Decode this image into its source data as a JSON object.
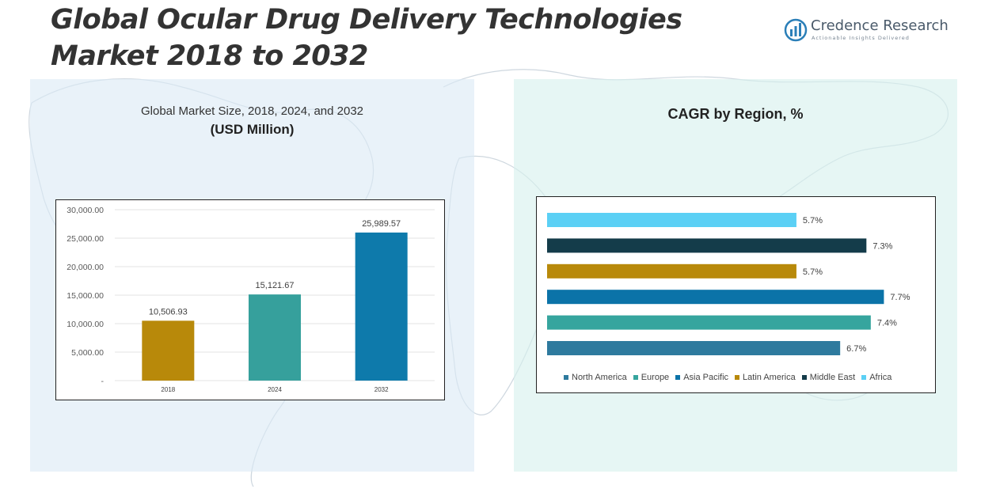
{
  "page": {
    "title_line1": "Global Ocular Drug Delivery Technologies",
    "title_line2": "Market 2018 to 2032"
  },
  "logo": {
    "name": "Credence Research",
    "tagline": "Actionable Insights Delivered",
    "icon": "credence-logo-icon",
    "color": "#2b7fb8"
  },
  "left_panel": {
    "subtitle": "Global Market Size, 2018, 2024, and 2032",
    "unit": "(USD Million)"
  },
  "right_panel": {
    "title": "CAGR by Region, %"
  },
  "chart_data": [
    {
      "type": "bar",
      "title": "Global Market Size, 2018, 2024, and 2032",
      "unit": "(USD Million)",
      "categories": [
        "2018",
        "2024",
        "2032"
      ],
      "values": [
        10506.93,
        15121.67,
        25989.57
      ],
      "value_labels": [
        "10,506.93",
        "15,121.67",
        "25,989.57"
      ],
      "colors": [
        "#b8890a",
        "#36a09c",
        "#0e7aab"
      ],
      "ylim": [
        0,
        30000
      ],
      "yticks": [
        0,
        5000,
        10000,
        15000,
        20000,
        25000,
        30000
      ],
      "ytick_labels": [
        "-",
        "5,000.00",
        "10,000.00",
        "15,000.00",
        "20,000.00",
        "25,000.00",
        "30,000.00"
      ],
      "grid": true,
      "legend": "none"
    },
    {
      "type": "bar",
      "orientation": "horizontal",
      "title": "CAGR by Region, %",
      "categories": [
        "North America",
        "Europe",
        "Asia Pacific",
        "Latin America",
        "Middle East",
        "Africa"
      ],
      "values": [
        6.7,
        7.4,
        7.7,
        5.7,
        7.3,
        5.7
      ],
      "value_labels": [
        "6.7%",
        "7.4%",
        "7.7%",
        "5.7%",
        "7.3%",
        "5.7%"
      ],
      "colors": [
        "#2e7a9e",
        "#36a59e",
        "#0b73a8",
        "#b8890a",
        "#143c4a",
        "#5bd0f5"
      ],
      "xlim": [
        0,
        8
      ],
      "grid": false,
      "legend": "bottom"
    }
  ]
}
